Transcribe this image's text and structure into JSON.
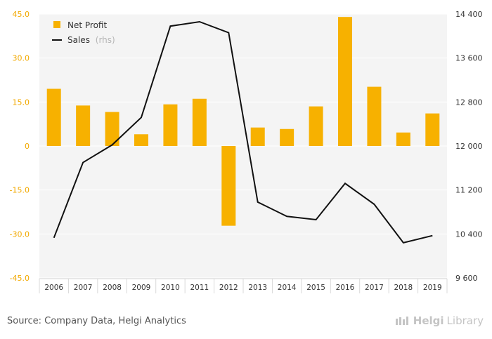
{
  "chart_data": {
    "type": "bar",
    "categories": [
      "2006",
      "2007",
      "2008",
      "2009",
      "2010",
      "2011",
      "2012",
      "2013",
      "2014",
      "2015",
      "2016",
      "2017",
      "2018",
      "2019"
    ],
    "series": [
      {
        "name": "Net Profit",
        "type": "bar",
        "axis": "left",
        "color": "#f7b100",
        "values": [
          19.5,
          13.8,
          11.6,
          4.0,
          14.2,
          16.1,
          -27.2,
          6.3,
          5.8,
          13.5,
          44.0,
          20.2,
          4.6,
          11.1
        ]
      },
      {
        "name": "Sales",
        "name_suffix": "(rhs)",
        "type": "line",
        "axis": "right",
        "color": "#111111",
        "values": [
          10330,
          11700,
          12020,
          12520,
          14180,
          14260,
          14060,
          10980,
          10720,
          10660,
          11320,
          10940,
          10240,
          10370
        ]
      }
    ],
    "y_left": {
      "ylim": [
        -45,
        45
      ],
      "ticks": [
        "45.0",
        "30.0",
        "15.0",
        "0",
        "-15.0",
        "-30.0",
        "-45.0"
      ],
      "tick_values": [
        45,
        30,
        15,
        0,
        -15,
        -30,
        -45
      ],
      "color": "#f2a900"
    },
    "y_right": {
      "ylim": [
        9600,
        14400
      ],
      "ticks": [
        "14 400",
        "13 600",
        "12 800",
        "12 000",
        "11 200",
        "10 400",
        "9 600"
      ],
      "tick_values": [
        14400,
        13600,
        12800,
        12000,
        11200,
        10400,
        9600
      ]
    },
    "grid": true,
    "legend": "top-left"
  },
  "footer": {
    "source": "Source: Company Data, Helgi Analytics",
    "logo_helgi": "Helgi",
    "logo_library": "Library"
  }
}
